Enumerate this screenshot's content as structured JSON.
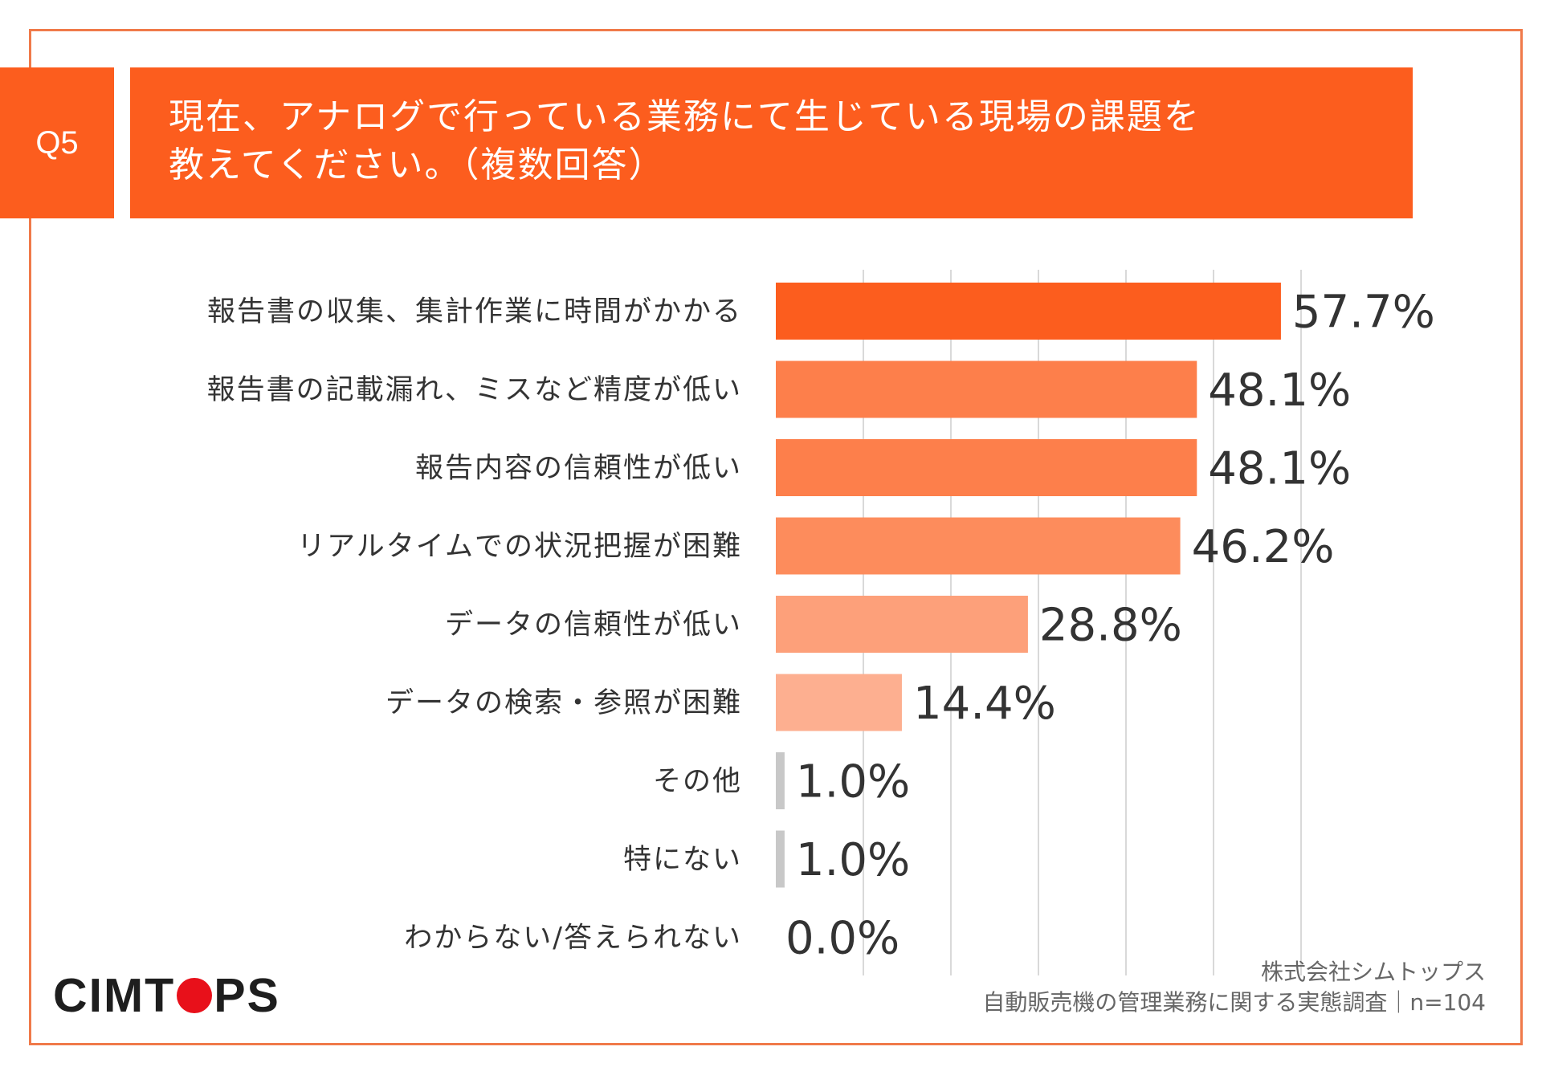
{
  "question": {
    "number": "Q5",
    "title_lines": [
      "現在、アナログで行っている業務にて生じている現場の課題を",
      "教えてください。（複数回答）"
    ]
  },
  "chart_data": {
    "type": "bar",
    "orientation": "horizontal",
    "title": "現在、アナログで行っている業務にて生じている現場の課題を教えてください。（複数回答）",
    "categories": [
      "報告書の収集、集計作業に時間がかかる",
      "報告書の記載漏れ、ミスなど精度が低い",
      "報告内容の信頼性が低い",
      "リアルタイムでの状況把握が困難",
      "データの信頼性が低い",
      "データの検索・参照が困難",
      "その他",
      "特にない",
      "わからない/答えられない"
    ],
    "values": [
      57.7,
      48.1,
      48.1,
      46.2,
      28.8,
      14.4,
      1.0,
      1.0,
      0.0
    ],
    "value_labels": [
      "57.7%",
      "48.1%",
      "48.1%",
      "46.2%",
      "28.8%",
      "14.4%",
      "1.0%",
      "1.0%",
      "0.0%"
    ],
    "bar_colors": [
      "#fc5d1e",
      "#fd7f4b",
      "#fd7f4b",
      "#fd8c5c",
      "#fda07a",
      "#fdaf90",
      "#c8c8c8",
      "#c8c8c8",
      "#c8c8c8"
    ],
    "unit": "%",
    "xlim": [
      0,
      60
    ],
    "grid": true
  },
  "logo": {
    "before": "CIMT",
    "after": "PS"
  },
  "footer": {
    "company": "株式会社シムトップス",
    "survey": "自動販売機の管理業務に関する実態調査｜n=104"
  },
  "colors": {
    "accent": "#fc5d1e",
    "frame": "#f07a4a",
    "logo_dot": "#e8101a"
  }
}
